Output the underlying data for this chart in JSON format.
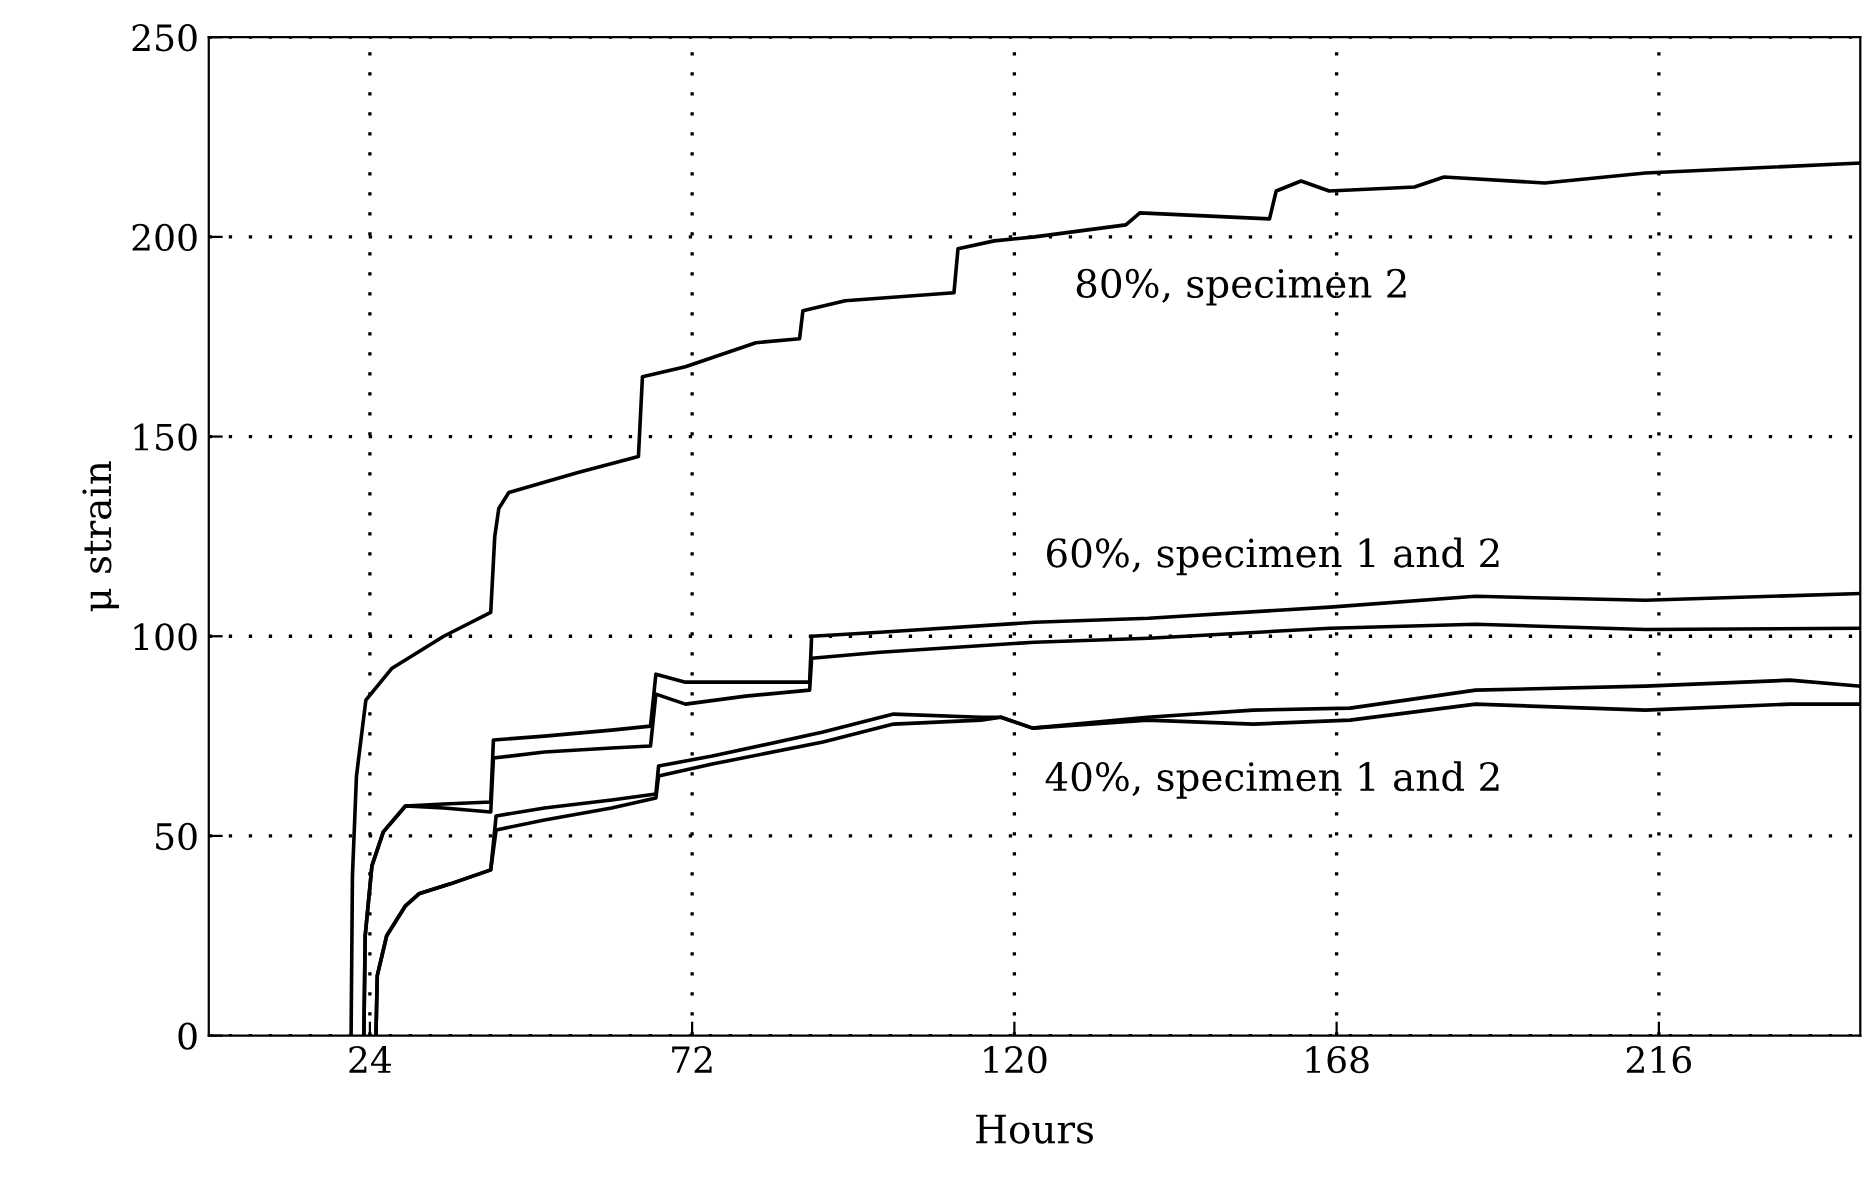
{
  "chart_data": {
    "type": "line",
    "xlabel": "Hours",
    "ylabel": "μ strain",
    "xlim": [
      0,
      246
    ],
    "ylim": [
      0,
      250
    ],
    "xticks": [
      24,
      72,
      120,
      168,
      216
    ],
    "yticks": [
      0,
      50,
      100,
      150,
      200,
      250
    ],
    "grid": true,
    "line_style": "solid",
    "series": [
      {
        "color": "#000000",
        "x": [
          21.2,
          21.4,
          22,
          23.4,
          27.3,
          35,
          42,
          42.6,
          43.2,
          44.7,
          55,
          64,
          64.6,
          71,
          81.5,
          88,
          88.5,
          94.8,
          111,
          111.6,
          117,
          123,
          136.6,
          138.7,
          158,
          159,
          162.7,
          166.9,
          179.6,
          184,
          199,
          214,
          246
        ],
        "values": [
          0,
          40,
          65,
          84,
          92,
          100,
          106,
          125,
          132,
          136,
          141,
          145,
          165,
          167.5,
          173.5,
          174.5,
          181.5,
          184,
          186,
          197,
          199,
          200,
          203,
          206,
          204.5,
          211.5,
          214,
          211.5,
          212.5,
          215,
          213.5,
          216,
          218.5
        ]
      },
      {
        "color": "#000000",
        "x": [
          23.1,
          23.3,
          24.3,
          26,
          29.3,
          35,
          42,
          42.4,
          50,
          60,
          65.8,
          66.6,
          71,
          80,
          89.5,
          89.8,
          100,
          123,
          140,
          167,
          188.7,
          214,
          246
        ],
        "values": [
          0,
          25,
          42.5,
          51,
          57.5,
          58,
          58.5,
          74,
          75,
          76.5,
          77.5,
          90.5,
          88.5,
          88.5,
          88.5,
          100,
          101,
          103.5,
          104.5,
          107.3,
          110,
          109,
          110.7
        ]
      },
      {
        "color": "#000000",
        "x": [
          23.1,
          23.3,
          24.3,
          26,
          29.3,
          35,
          42,
          42.4,
          50,
          60,
          65.8,
          66.6,
          71,
          80,
          89.5,
          89.8,
          100,
          123,
          140,
          167,
          188.7,
          214,
          246
        ],
        "values": [
          0,
          25,
          42.5,
          51,
          57.5,
          57,
          56,
          69.5,
          71,
          72,
          72.5,
          85.5,
          83,
          85,
          86.5,
          94.5,
          96,
          98.5,
          99.5,
          102,
          103,
          101.7,
          102
        ]
      },
      {
        "color": "#000000",
        "x": [
          24.9,
          25.1,
          26.5,
          29.3,
          31.3,
          36,
          42,
          42.8,
          50,
          60,
          66.6,
          67,
          75,
          91.5,
          102,
          115,
          118,
          122.7,
          139.8,
          155.6,
          170,
          188.7,
          214,
          235.5,
          246
        ],
        "values": [
          0,
          15,
          25,
          32.5,
          35.5,
          38,
          41.5,
          55,
          57,
          59,
          60.5,
          67.5,
          70,
          76,
          80.5,
          79.7,
          79.7,
          77,
          79.7,
          81.5,
          82,
          86.5,
          87.5,
          89,
          87.5
        ]
      },
      {
        "color": "#000000",
        "x": [
          24.9,
          25.1,
          26.5,
          29.3,
          31.3,
          36,
          42,
          42.8,
          50,
          60,
          66.6,
          67,
          75,
          91.5,
          102,
          115,
          118,
          122.7,
          139.8,
          155.6,
          170,
          188.7,
          214,
          235.5,
          246
        ],
        "values": [
          0,
          15,
          25,
          32.5,
          35.5,
          38,
          41.5,
          51.5,
          54,
          57,
          59.5,
          65,
          68,
          73.5,
          78,
          79,
          79.7,
          77,
          79,
          78,
          79,
          83,
          81.5,
          83,
          83
        ]
      }
    ],
    "annotations": [
      "80%, specimen 2",
      "60%, specimen 1 and 2",
      "40%, specimen 1 and 2"
    ]
  }
}
